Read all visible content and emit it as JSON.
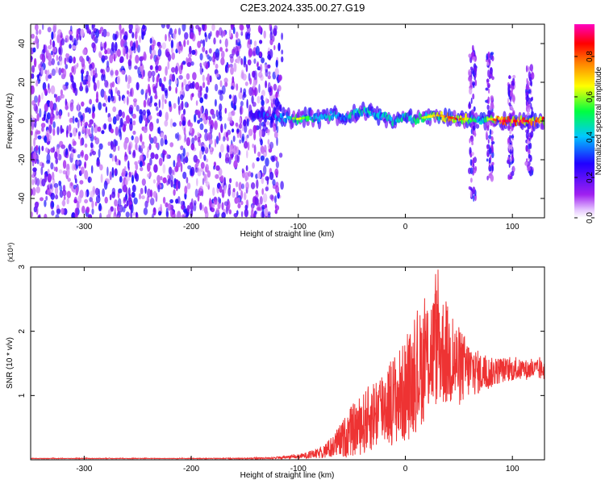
{
  "figure_title": "C2E3.2024.335.00.27.G19",
  "chart_data": [
    {
      "type": "heatmap",
      "xlabel": "Height of straight line (km)",
      "ylabel": "Frequency (Hz)",
      "xlim": [
        -350,
        130
      ],
      "ylim": [
        -50,
        50
      ],
      "xticks": [
        -300,
        -200,
        -100,
        0,
        100
      ],
      "yticks": [
        -40,
        -20,
        0,
        20,
        40
      ],
      "colorbar": {
        "label": "Normalized spectral amplitude",
        "range": [
          0,
          0.96
        ],
        "ticks": [
          0.0,
          0.2,
          0.4,
          0.6,
          0.8
        ],
        "tick_labels": [
          "0.0",
          "0.2",
          "0.4",
          "0.6",
          "0.8"
        ],
        "colormap": [
          "#ffffff",
          "#a020f0",
          "#2000ff",
          "#00c8ff",
          "#00ff40",
          "#ffff00",
          "#ff8000",
          "#ff0000",
          "#ff00c0"
        ]
      },
      "noise_region": {
        "x_from": -350,
        "x_to": -115,
        "level": 0.2
      },
      "signal_track": {
        "x": [
          -145,
          -130,
          -115,
          -100,
          -90,
          -80,
          -70,
          -60,
          -50,
          -40,
          -30,
          -20,
          -10,
          0,
          10,
          20,
          30,
          40,
          50,
          60,
          70,
          80,
          90,
          100,
          110,
          120,
          130
        ],
        "frequency": [
          3,
          3,
          2,
          1,
          2,
          1,
          3,
          2,
          3,
          5,
          4,
          2,
          0,
          2,
          1,
          2,
          3,
          2,
          1,
          1,
          0,
          1,
          0,
          0,
          0,
          0,
          0
        ],
        "amplitude": [
          0.3,
          0.35,
          0.45,
          0.6,
          0.55,
          0.5,
          0.55,
          0.45,
          0.5,
          0.5,
          0.5,
          0.55,
          0.5,
          0.5,
          0.55,
          0.6,
          0.7,
          0.8,
          0.85,
          0.6,
          0.5,
          0.7,
          0.95,
          0.95,
          0.95,
          0.95,
          0.95
        ]
      },
      "vertical_noise_bands": [
        {
          "x": 63,
          "f_range": [
            -40,
            38
          ]
        },
        {
          "x": 79,
          "f_range": [
            -30,
            35
          ]
        },
        {
          "x": 99,
          "f_range": [
            -30,
            25
          ]
        },
        {
          "x": 116,
          "f_range": [
            -28,
            28
          ]
        }
      ]
    },
    {
      "type": "line",
      "xlabel": "Height of straight line (km)",
      "ylabel": "SNR (10 * v/v)",
      "y_multiplier": "(x10⁴)",
      "xlim": [
        -350,
        130
      ],
      "ylim": [
        0,
        3
      ],
      "xticks": [
        -300,
        -200,
        -100,
        0,
        100
      ],
      "yticks": [
        1,
        2,
        3
      ],
      "color": "#ee3333",
      "series": [
        {
          "x": [
            -350,
            -300,
            -250,
            -200,
            -150,
            -120,
            -100,
            -80,
            -70,
            -60,
            -50,
            -40,
            -30,
            -20,
            -10,
            0,
            10,
            20,
            30,
            40,
            50,
            60,
            70,
            80,
            90,
            100,
            110,
            120,
            130
          ],
          "values": [
            0.02,
            0.02,
            0.02,
            0.02,
            0.02,
            0.03,
            0.05,
            0.1,
            0.18,
            0.3,
            0.45,
            0.55,
            0.7,
            0.85,
            0.95,
            1.05,
            1.3,
            1.6,
            1.8,
            1.6,
            1.45,
            1.4,
            1.35,
            1.35,
            1.4,
            1.4,
            1.4,
            1.4,
            1.4
          ],
          "peak_to_peak": [
            0.005,
            0.005,
            0.005,
            0.005,
            0.01,
            0.02,
            0.04,
            0.1,
            0.2,
            0.35,
            0.5,
            0.6,
            0.7,
            0.8,
            0.9,
            1.0,
            1.1,
            1.2,
            1.2,
            1.0,
            0.8,
            0.55,
            0.4,
            0.3,
            0.25,
            0.22,
            0.2,
            0.2,
            0.2
          ],
          "max": [
            0.03,
            0.03,
            0.03,
            0.03,
            0.03,
            0.05,
            0.1,
            0.2,
            0.35,
            0.55,
            0.8,
            1.0,
            1.2,
            1.4,
            1.6,
            1.9,
            2.3,
            2.6,
            3.0,
            2.5,
            2.1,
            1.8,
            1.7,
            1.65,
            1.65,
            1.6,
            1.6,
            1.6,
            1.6
          ]
        }
      ]
    }
  ]
}
